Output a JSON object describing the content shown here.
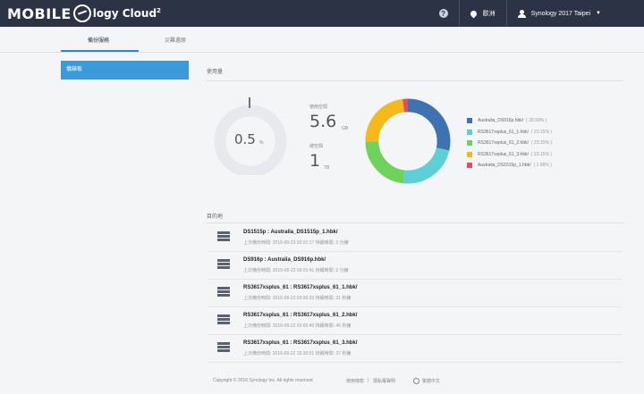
{
  "header": {
    "logo_mobile": "MOBILE",
    "logo_product": "logy Cloud",
    "logo_sup": "2",
    "location": "歐洲",
    "user": "Synology 2017 Taipei"
  },
  "tabs": [
    {
      "label": "備份服務"
    },
    {
      "label": "災難還原"
    }
  ],
  "sidebar": {
    "active_item": "儀錶板"
  },
  "usage": {
    "title": "使用量",
    "percent_value": "0.5",
    "percent_unit": "%",
    "percent_fraction": 0.005,
    "used_label": "使用空間",
    "used_value": "5.6",
    "used_unit": "GB",
    "total_label": "總空間",
    "total_value": "1",
    "total_unit": "TB"
  },
  "chart_data": {
    "type": "pie",
    "categories": [
      "Australia_DS916p.hbk/",
      "RS3617xsplus_61_1.hbk/",
      "RS3617xsplus_61_2.hbk/",
      "RS3617xsplus_61_3.hbk/",
      "Australia_DS1515p_1.hbk/"
    ],
    "values": [
      28.59,
      23.15,
      23.15,
      23.15,
      1.96
    ],
    "labels": [
      "( 28.59% )",
      "( 23.15% )",
      "( 23.15% )",
      "( 23.15% )",
      "( 1.96% )"
    ],
    "colors": [
      "#3d73b0",
      "#5ccfd7",
      "#6fd25a",
      "#f5b91b",
      "#e04f5f"
    ],
    "legend_position": "right"
  },
  "destinations": {
    "title": "目的地",
    "items": [
      {
        "title": "DS1515p : Australia_DS1515p_1.hbk/",
        "sub": "上次備份時間: 2016-09-23 03:01:17 持續時間: 2 分鐘"
      },
      {
        "title": "DS916p : Australia_DS916p.hbk/",
        "sub": "上次備份時間: 2016-09-23 03:01:41 持續時間: 2 分鐘"
      },
      {
        "title": "RS3617xsplus_61 : RS3617xsplus_61_1.hbk/",
        "sub": "上次備份時間: 2016-09-23 03:00:33 持續時間: 31 秒鐘"
      },
      {
        "title": "RS3617xsplus_61 : RS3617xsplus_61_2.hbk/",
        "sub": "上次備份時間: 2016-09-22 03:00:49 持續時間: 46 秒鐘"
      },
      {
        "title": "RS3617xsplus_61 : RS3617xsplus_61_3.hbk/",
        "sub": "上次備份時間: 2016-09-22 16:30:51 持續時間: 37 秒鐘"
      }
    ]
  },
  "footer": {
    "copyright": "Copyright © 2016 Synology Inc. All rights reserved",
    "terms": "使用條款",
    "privacy": "隱私權聲明",
    "language": "繁體中文"
  }
}
